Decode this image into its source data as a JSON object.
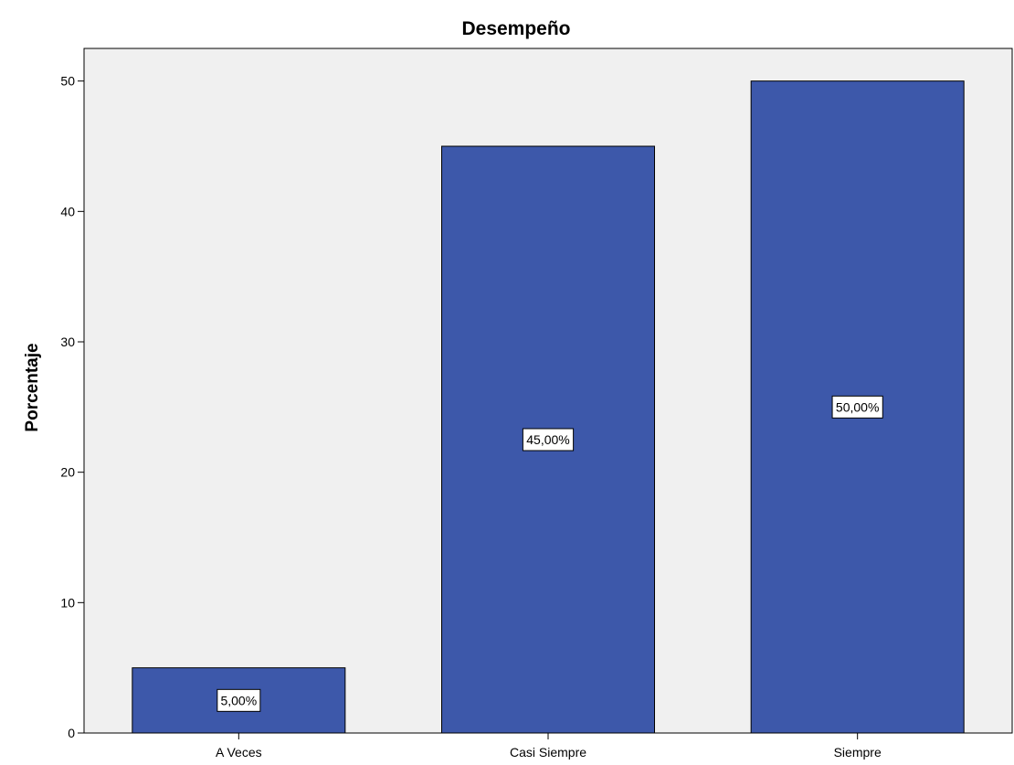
{
  "chart_data": {
    "type": "bar",
    "title": "Desempeño",
    "xlabel": "",
    "ylabel": "Porcentaje",
    "categories": [
      "A Veces",
      "Casi Siempre",
      "Siempre"
    ],
    "values": [
      5,
      45,
      50
    ],
    "data_labels": [
      "5,00%",
      "45,00%",
      "50,00%"
    ],
    "ylim": [
      0,
      52.5
    ],
    "yticks": [
      0,
      10,
      20,
      30,
      40,
      50
    ],
    "grid": false,
    "legend": "none",
    "colors": {
      "bar": "#3d58aa",
      "plot_background": "#f0f0f0",
      "label_background": "#ffffff"
    }
  }
}
